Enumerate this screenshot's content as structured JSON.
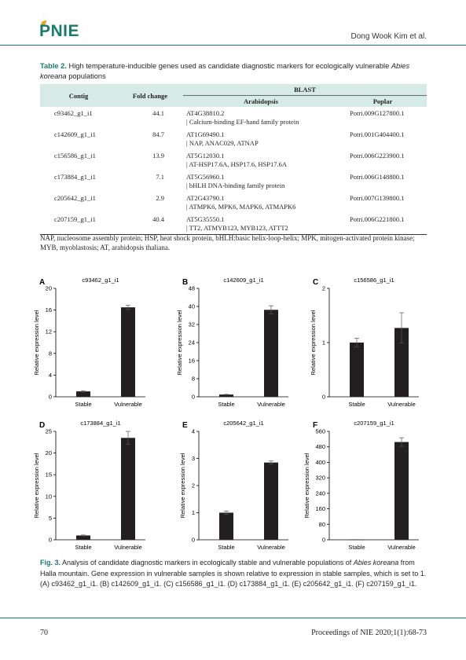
{
  "header": {
    "logo": "PNIE",
    "authors": "Dong Wook Kim et al."
  },
  "table": {
    "label": "Table 2.",
    "caption_main": " High temperature-inducible genes used as candidate diagnostic markers for ecologically vulnerable ",
    "caption_species": "Abies koreana",
    "caption_end": " populations",
    "col_contig": "Contig",
    "col_fold": "Fold change",
    "col_blast": "BLAST",
    "col_arab": "Arabidopsis",
    "col_poplar": "Poplar",
    "rows": [
      {
        "contig": "c93462_g1_i1",
        "fold": "44.1",
        "arab1": "AT4G38810.2",
        "arab2": "| Calcium-binding EF-hand family protein",
        "poplar": "Potri.009G127800.1"
      },
      {
        "contig": "c142609_g1_i1",
        "fold": "84.7",
        "arab1": "AT1G69490.1",
        "arab2": "| NAP, ANAC029, ATNAP",
        "poplar": "Potri.001G404400.1"
      },
      {
        "contig": "c156586_g1_i1",
        "fold": "13.9",
        "arab1": "AT5G12030.1",
        "arab2": "| AT-HSP17.6A, HSP17.6, HSP17.6A",
        "poplar": "Potri.006G223900.1"
      },
      {
        "contig": "c173884_g1_i1",
        "fold": "7.1",
        "arab1": "AT5G56960.1",
        "arab2": "| bHLH DNA-binding family protein",
        "poplar": "Potri.006G148800.1"
      },
      {
        "contig": "c205642_g1_i1",
        "fold": "2.9",
        "arab1": "AT2G43790.1",
        "arab2": "| ATMPK6, MPK6, MAPK6, ATMAPK6",
        "poplar": "Potri.007G139800.1"
      },
      {
        "contig": "c207159_g1_i1",
        "fold": "40.4",
        "arab1": "AT5G35550.1",
        "arab2": "| TT2, ATMYB123, MYB123, ATTT2",
        "poplar": "Potri.006G221800.1"
      }
    ],
    "note": "NAP, nucleosome assembly protein; HSP, heat shock protein, bHLH:basic helix-loop-helix; MPK, mitogen-activated protein kinase; MYB, myoblastosis; AT, arabidopsis thaliana."
  },
  "figure": {
    "label": "Fig. 3.",
    "caption_a": " Analysis of candidate diagnostic markers in ecologically stable and vulnerable populations of ",
    "caption_species": "Abies koreana",
    "caption_b": " from Halla mountain. Gene expression in vulnerable samples is shown relative to expression in stable samples, which is set to 1. (A) c93462_g1_i1. (B) c142609_g1_i1. (C) c156586_g1_i1. (D) c173884_g1_i1. (E) c205642_g1_i1. (F) c207159_g1_i1."
  },
  "footer": {
    "page": "70",
    "journal": "Proceedings of NIE 2020;1(1):68-73"
  },
  "chart_data": [
    {
      "type": "bar",
      "panel": "A",
      "title": "c93462_g1_i1",
      "categories": [
        "Stable",
        "Vulnerable"
      ],
      "values": [
        1,
        16.5
      ],
      "errors": [
        0.1,
        0.4
      ],
      "ylabel": "Relative expression level",
      "ylim": [
        0,
        20
      ],
      "yticks": [
        0,
        4,
        8,
        12,
        16,
        20
      ]
    },
    {
      "type": "bar",
      "panel": "B",
      "title": "c142609_g1_i1",
      "categories": [
        "Stable",
        "Vulnerable"
      ],
      "values": [
        1,
        38.5
      ],
      "errors": [
        0.1,
        1.8
      ],
      "ylabel": "Relative expression level",
      "ylim": [
        0,
        48
      ],
      "yticks": [
        0,
        8,
        16,
        24,
        32,
        40,
        48
      ]
    },
    {
      "type": "bar",
      "panel": "C",
      "title": "c156586_g1_i1",
      "categories": [
        "Stable",
        "Vulnerable"
      ],
      "values": [
        1,
        1.27
      ],
      "errors": [
        0.08,
        0.28
      ],
      "ylabel": "Relative expression level",
      "ylim": [
        0,
        2
      ],
      "yticks": [
        0,
        1,
        2
      ]
    },
    {
      "type": "bar",
      "panel": "D",
      "title": "c173884_g1_i1",
      "categories": [
        "Stable",
        "Vulnerable"
      ],
      "values": [
        1,
        23.5
      ],
      "errors": [
        0.1,
        1.5
      ],
      "ylabel": "Relative expression level",
      "ylim": [
        0,
        25
      ],
      "yticks": [
        0,
        5,
        10,
        15,
        20,
        25
      ]
    },
    {
      "type": "bar",
      "panel": "E",
      "title": "c205642_g1_i1",
      "categories": [
        "Stable",
        "Vulnerable"
      ],
      "values": [
        1,
        2.85
      ],
      "errors": [
        0.06,
        0.06
      ],
      "ylabel": "Relative expression level",
      "ylim": [
        0,
        4
      ],
      "yticks": [
        0,
        1,
        2,
        3,
        4
      ]
    },
    {
      "type": "bar",
      "panel": "F",
      "title": "c207159_g1_i1",
      "categories": [
        "Stable",
        "Vulnerable"
      ],
      "values": [
        1,
        505
      ],
      "errors": [
        0.5,
        22
      ],
      "ylabel": "Relative expression level",
      "ylim": [
        0,
        560
      ],
      "yticks": [
        0,
        80,
        160,
        240,
        320,
        400,
        480,
        560
      ]
    }
  ]
}
